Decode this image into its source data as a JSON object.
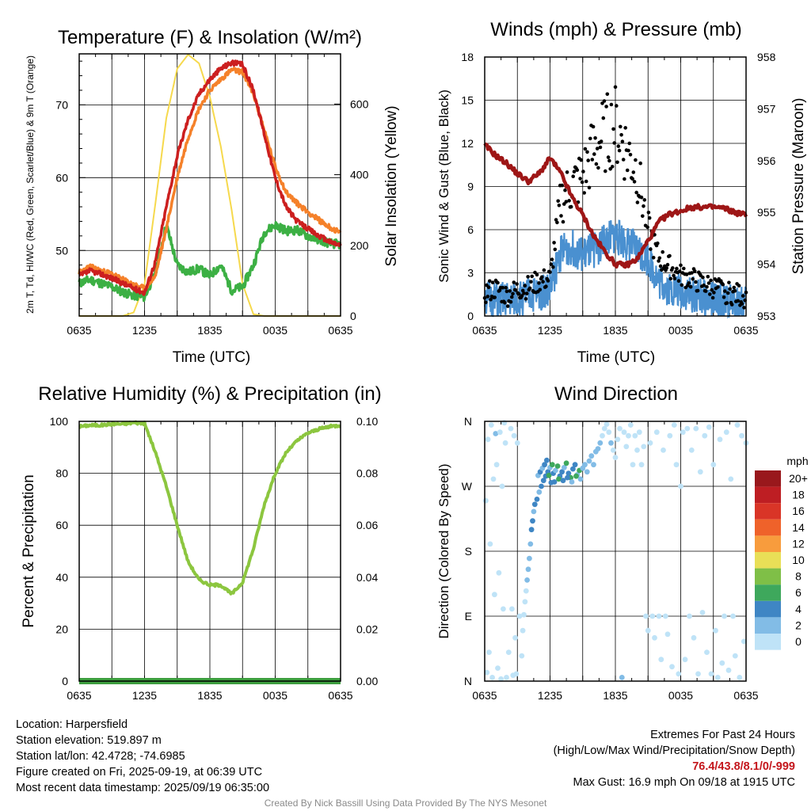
{
  "colors": {
    "temp_red": "#cc1f1f",
    "temp_orange": "#f5812a",
    "dewpoint_green": "#3cb044",
    "insolation_yellow": "#f6d94d",
    "wind_blue": "#4a90d0",
    "pressure_maroon": "#9e1616",
    "humidity_green": "#8cc63f",
    "precip_green": "#3d9e3f"
  },
  "chart_data": [
    {
      "type": "line",
      "title": "Temperature (F) & Insolation (W/m²)",
      "xlabel": "Time (UTC)",
      "ylabel": "2m T, Td, HI/WC (Red, Green, Scarlet/Blue) & 9m T (Orange)",
      "ylabel_right": "Solar Insolation (Yellow)",
      "x_ticks": [
        "0635",
        "1235",
        "1835",
        "0035",
        "0635"
      ],
      "ylim": [
        41,
        77
      ],
      "y_ticks": [
        50,
        60,
        70
      ],
      "ylim_right": [
        0,
        742
      ],
      "y_ticks_right": [
        0,
        200,
        400,
        600
      ],
      "grid": true,
      "x_hours": [
        0,
        1,
        2,
        3,
        4,
        5,
        6,
        7,
        8,
        9,
        10,
        11,
        12,
        13,
        14,
        15,
        16,
        17,
        18,
        19,
        20,
        21,
        22,
        23,
        24
      ],
      "series": [
        {
          "name": "2m T (Red)",
          "axis": "left",
          "values": [
            46.5,
            47.2,
            46.8,
            46.2,
            45.5,
            44.8,
            44.2,
            48.5,
            56,
            63,
            68,
            71.5,
            73.5,
            75,
            75.8,
            75.5,
            72,
            66,
            60,
            56,
            54,
            53,
            52,
            51.2,
            50.7
          ]
        },
        {
          "name": "9m T (Orange)",
          "axis": "left",
          "values": [
            47,
            47.8,
            47.2,
            46.8,
            46,
            45.3,
            44.8,
            46.5,
            53,
            60,
            65.5,
            69.5,
            72,
            73.5,
            74.8,
            74.5,
            71.5,
            66.5,
            61.5,
            58,
            56.5,
            55.3,
            54.2,
            53.2,
            52.4
          ]
        },
        {
          "name": "Td (Green)",
          "axis": "left",
          "values": [
            45.5,
            46,
            45.5,
            45,
            44.3,
            43.8,
            43.6,
            47,
            53.5,
            48,
            47,
            47.5,
            46.5,
            48,
            44.5,
            45,
            48,
            52.5,
            53.5,
            52.7,
            52.8,
            52,
            51.5,
            51,
            50.8
          ]
        },
        {
          "name": "Solar Insolation (Yellow)",
          "axis": "right",
          "values": [
            0,
            0,
            0,
            0,
            0,
            10,
            90,
            320,
            560,
            700,
            740,
            715,
            620,
            480,
            300,
            90,
            5,
            0,
            0,
            0,
            0,
            0,
            0,
            0,
            0
          ]
        }
      ]
    },
    {
      "type": "line",
      "title": "Winds (mph) & Pressure (mb)",
      "xlabel": "Time (UTC)",
      "ylabel": "Sonic Wind & Gust (Blue, Black)",
      "ylabel_right": "Station Pressure (Maroon)",
      "x_ticks": [
        "0635",
        "1235",
        "1835",
        "0035",
        "0635"
      ],
      "ylim": [
        0,
        18
      ],
      "y_ticks": [
        0,
        3,
        6,
        9,
        12,
        15,
        18
      ],
      "ylim_right": [
        953,
        958
      ],
      "y_ticks_right": [
        953,
        954,
        955,
        956,
        957,
        958
      ],
      "grid": true,
      "x_hours": [
        0,
        1,
        2,
        3,
        4,
        5,
        6,
        7,
        8,
        9,
        10,
        11,
        12,
        13,
        14,
        15,
        16,
        17,
        18,
        19,
        20,
        21,
        22,
        23,
        24
      ],
      "series": [
        {
          "name": "Sonic Wind (Blue)",
          "axis": "left",
          "values": [
            1.3,
            1,
            1.1,
            1.2,
            1.4,
            1.6,
            1.9,
            4.5,
            4.8,
            4.2,
            4.6,
            5.2,
            5.6,
            5.1,
            4.6,
            4,
            2.4,
            1.9,
            1.7,
            1.5,
            1.3,
            1.1,
            1,
            0.9,
            0.9
          ]
        },
        {
          "name": "Gust (Black)",
          "axis": "left",
          "values": [
            1.6,
            1.9,
            1.4,
            1.8,
            2,
            2.4,
            2.6,
            8,
            9,
            9.6,
            11.5,
            12.5,
            13.2,
            11.5,
            10,
            6,
            4,
            3.4,
            2.8,
            2.6,
            2.2,
            2,
            1.7,
            1.5,
            1.3
          ]
        },
        {
          "name": "Station Pressure (Maroon)",
          "axis": "right",
          "values": [
            956.3,
            956.1,
            955.95,
            955.75,
            955.6,
            955.75,
            956.05,
            955.75,
            955.3,
            954.95,
            954.55,
            954.25,
            954,
            953.98,
            954.1,
            954.45,
            954.82,
            954.97,
            955.03,
            955.1,
            955.1,
            955.1,
            955.08,
            955,
            954.95
          ]
        }
      ]
    },
    {
      "type": "line",
      "title": "Relative Humidity (%) & Precipitation (in)",
      "ylabel": "Percent & Precipitation",
      "x_ticks": [
        "0635",
        "1235",
        "1835",
        "0035",
        "0635"
      ],
      "ylim": [
        0,
        100
      ],
      "y_ticks": [
        0,
        20,
        40,
        60,
        80,
        100
      ],
      "ylim_right": [
        0,
        0.1
      ],
      "y_ticks_right": [
        "0.00",
        "0.02",
        "0.04",
        "0.06",
        "0.08",
        "0.10"
      ],
      "grid": true,
      "x_hours": [
        0,
        1,
        2,
        3,
        4,
        5,
        6,
        7,
        8,
        9,
        10,
        11,
        12,
        13,
        14,
        15,
        16,
        17,
        18,
        19,
        20,
        21,
        22,
        23,
        24
      ],
      "series": [
        {
          "name": "Relative Humidity",
          "axis": "left",
          "values": [
            98,
            98.5,
            98.5,
            99,
            99,
            99.5,
            99.2,
            88,
            75,
            60,
            46,
            39,
            37,
            37,
            33.5,
            38,
            51,
            68,
            80,
            88,
            92.5,
            95.5,
            97,
            98,
            98.5
          ]
        },
        {
          "name": "Precipitation",
          "axis": "right",
          "values": [
            0,
            0,
            0,
            0,
            0,
            0,
            0,
            0,
            0,
            0,
            0,
            0,
            0,
            0,
            0,
            0,
            0,
            0,
            0,
            0,
            0,
            0,
            0,
            0,
            0
          ]
        }
      ]
    },
    {
      "type": "scatter",
      "title": "Wind Direction",
      "ylabel": "Direction (Colored By Speed)",
      "x_ticks": [
        "0635",
        "1235",
        "1835",
        "0035",
        "0635"
      ],
      "y_ticks": [
        "N",
        "E",
        "S",
        "W",
        "N"
      ],
      "ylim": [
        0,
        360
      ],
      "grid": true,
      "colorbar_unit": "mph",
      "colorbar_labels": [
        "20+",
        "18",
        "16",
        "14",
        "12",
        "10",
        "8",
        "6",
        "4",
        "2",
        "0"
      ],
      "colorbar_colors": [
        "#99181c",
        "#be1e23",
        "#d93527",
        "#ef622a",
        "#f89c3d",
        "#e9df57",
        "#7fbf47",
        "#3ea85c",
        "#3f86c4",
        "#82bce6",
        "#bfe3f7"
      ],
      "points": [
        [
          0.1,
          250,
          1
        ],
        [
          0.2,
          12,
          0.6
        ],
        [
          0.3,
          335,
          1
        ],
        [
          0.4,
          40,
          0.5
        ],
        [
          0.5,
          190,
          0.7
        ],
        [
          0.6,
          355,
          1.2
        ],
        [
          0.7,
          5,
          0.4
        ],
        [
          0.8,
          280,
          0.8
        ],
        [
          0.9,
          120,
          0.5
        ],
        [
          1,
          343,
          2.5
        ],
        [
          1.1,
          300,
          1
        ],
        [
          1.2,
          18,
          0.7
        ],
        [
          1.3,
          150,
          0.6
        ],
        [
          1.4,
          345,
          1.3
        ],
        [
          1.5,
          3,
          0.5
        ],
        [
          1.6,
          270,
          0.8
        ],
        [
          1.7,
          100,
          0.6
        ],
        [
          1.8,
          358,
          1.1
        ],
        [
          1.9,
          330,
          1.9
        ],
        [
          2,
          5,
          0.3
        ],
        [
          2.2,
          40,
          0.5
        ],
        [
          2.4,
          350,
          1.1
        ],
        [
          2.5,
          100,
          0.7
        ],
        [
          2.6,
          8,
          1
        ],
        [
          2.7,
          340,
          0.8
        ],
        [
          2.8,
          60,
          1.2
        ],
        [
          2.9,
          10,
          0.7
        ],
        [
          3,
          330,
          1
        ],
        [
          3.2,
          90,
          0.8
        ],
        [
          3.4,
          35,
          0.9
        ],
        [
          3.5,
          70,
          1.4
        ],
        [
          3.6,
          92,
          1.5
        ],
        [
          3.7,
          110,
          1.6
        ],
        [
          3.8,
          125,
          1.8
        ],
        [
          3.9,
          140,
          2
        ],
        [
          4,
          155,
          2.4
        ],
        [
          4.1,
          170,
          3
        ],
        [
          4.2,
          190,
          3.6
        ],
        [
          4.3,
          210,
          4.5
        ],
        [
          4.4,
          222,
          5
        ],
        [
          4.5,
          235,
          3.5
        ],
        [
          4.6,
          245,
          4
        ],
        [
          4.8,
          252,
          4.2
        ],
        [
          5,
          262,
          3.8
        ],
        [
          5.2,
          270,
          4.2
        ],
        [
          5.4,
          278,
          5
        ],
        [
          5.6,
          284,
          4.7
        ],
        [
          5.8,
          290,
          5.6
        ],
        [
          6,
          296,
          3.8
        ],
        [
          6.2,
          300,
          6.5
        ],
        [
          4.9,
          285,
          3
        ],
        [
          5.1,
          290,
          4.5
        ],
        [
          5.3,
          295,
          3.5
        ],
        [
          5.5,
          300,
          5.8
        ],
        [
          5.7,
          306,
          4
        ],
        [
          5.9,
          285,
          6.2
        ],
        [
          6.1,
          275,
          4.3
        ],
        [
          6.3,
          288,
          5.4
        ],
        [
          6.5,
          292,
          3.9
        ],
        [
          6.7,
          298,
          6.8
        ],
        [
          6.9,
          284,
          4.2
        ],
        [
          7.1,
          290,
          5.9
        ],
        [
          7.3,
          296,
          3.7
        ],
        [
          7.5,
          302,
          6.2
        ],
        [
          7.7,
          288,
          4.8
        ],
        [
          7.9,
          282,
          7.1
        ],
        [
          8.1,
          294,
          4
        ],
        [
          8.3,
          300,
          5.4
        ],
        [
          8.5,
          286,
          3.7
        ],
        [
          8.7,
          292,
          6.6
        ],
        [
          6.4,
          276,
          5
        ],
        [
          6.8,
          280,
          6.6
        ],
        [
          7.2,
          278,
          4.1
        ],
        [
          7.6,
          282,
          5.6
        ],
        [
          8,
          276,
          3.8
        ],
        [
          8.4,
          284,
          6.4
        ],
        [
          8.8,
          280,
          3.5
        ],
        [
          9,
          295,
          2.8
        ],
        [
          9.2,
          300,
          3.2
        ],
        [
          9.4,
          290,
          2.5
        ],
        [
          9.6,
          305,
          2.6
        ],
        [
          9.8,
          312,
          2.2
        ],
        [
          10,
          300,
          2.9
        ],
        [
          10.2,
          318,
          2.1
        ],
        [
          10.4,
          322,
          2.4
        ],
        [
          10.6,
          330,
          2
        ],
        [
          10.8,
          340,
          1.8
        ],
        [
          11,
          350,
          1.6
        ],
        [
          11.2,
          356,
          1.2
        ],
        [
          11.4,
          345,
          1.6
        ],
        [
          11.6,
          330,
          2.6
        ],
        [
          11.8,
          320,
          1.4
        ],
        [
          12,
          310,
          1
        ],
        [
          12.2,
          335,
          0.8
        ],
        [
          12.4,
          350,
          0.6
        ],
        [
          12.6,
          5,
          2.2
        ],
        [
          12.8,
          345,
          0.8
        ],
        [
          13,
          325,
          0.6
        ],
        [
          13.2,
          340,
          1.1
        ],
        [
          13.4,
          355,
          0.7
        ],
        [
          13.6,
          300,
          0.5
        ],
        [
          13.8,
          340,
          0.8
        ],
        [
          14,
          320,
          0.6
        ],
        [
          14.2,
          345,
          1
        ],
        [
          14.4,
          300,
          0.7
        ],
        [
          14.6,
          325,
          1.1
        ],
        [
          14.8,
          90,
          0.6
        ],
        [
          15,
          70,
          1
        ],
        [
          15.2,
          330,
          0.8
        ],
        [
          15.4,
          90,
          0.7
        ],
        [
          15.6,
          60,
          1.2
        ],
        [
          15.8,
          345,
          0.8
        ],
        [
          16,
          90,
          0.5
        ],
        [
          16.2,
          30,
          0.9
        ],
        [
          16.4,
          320,
          1
        ],
        [
          16.6,
          90,
          0.4
        ],
        [
          16.8,
          65,
          0.8
        ],
        [
          17,
          340,
          1.2
        ],
        [
          17.2,
          20,
          0.6
        ],
        [
          17.4,
          355,
          1.5
        ],
        [
          17.6,
          300,
          0.8
        ],
        [
          17.8,
          10,
          1
        ],
        [
          18,
          270,
          0.7
        ],
        [
          18.2,
          345,
          1.1
        ],
        [
          18.4,
          30,
          0.6
        ],
        [
          18.6,
          350,
          1
        ],
        [
          18.8,
          90,
          0.6
        ],
        [
          19,
          320,
          0.9
        ],
        [
          19.2,
          60,
          1.4
        ],
        [
          19.4,
          350,
          0.8
        ],
        [
          19.6,
          10,
          0.7
        ],
        [
          19.8,
          290,
          1
        ],
        [
          20,
          95,
          0.6
        ],
        [
          20.2,
          340,
          1.2
        ],
        [
          20.4,
          40,
          0.8
        ],
        [
          20.6,
          352,
          0.9
        ],
        [
          20.8,
          10,
          1.3
        ],
        [
          21,
          300,
          0.5
        ],
        [
          21.2,
          70,
          0.7
        ],
        [
          21.4,
          5,
          0.5
        ],
        [
          21.6,
          335,
          1.5
        ],
        [
          21.8,
          25,
          0.6
        ],
        [
          22,
          90,
          0.9
        ],
        [
          22.2,
          345,
          1.1
        ],
        [
          22.4,
          15,
          0.7
        ],
        [
          22.6,
          280,
          0.8
        ],
        [
          22.8,
          90,
          1.3
        ],
        [
          23,
          35,
          0.6
        ],
        [
          23.2,
          355,
          0.9
        ],
        [
          23.4,
          5,
          1
        ],
        [
          23.6,
          340,
          0.7
        ],
        [
          23.8,
          55,
          0.9
        ],
        [
          24,
          330,
          1.2
        ]
      ]
    }
  ],
  "info_left": [
    "Location: Harpersfield",
    "Station elevation: 519.897 m",
    "Station lat/lon: 42.4728; -74.6985",
    "Figure created on Fri, 2025-09-19, at 06:39 UTC",
    "Most recent data timestamp: 2025/09/19 06:35:00"
  ],
  "info_right": {
    "line1": "Extremes For Past 24 Hours",
    "line2": "(High/Low/Max Wind/Precipitation/Snow Depth)",
    "extremes": "76.4/43.8/8.1/0/-999",
    "gust": "Max Gust: 16.9 mph On 09/18 at 1915 UTC"
  },
  "credit": "Created By Nick Bassill Using Data Provided By The NYS Mesonet"
}
